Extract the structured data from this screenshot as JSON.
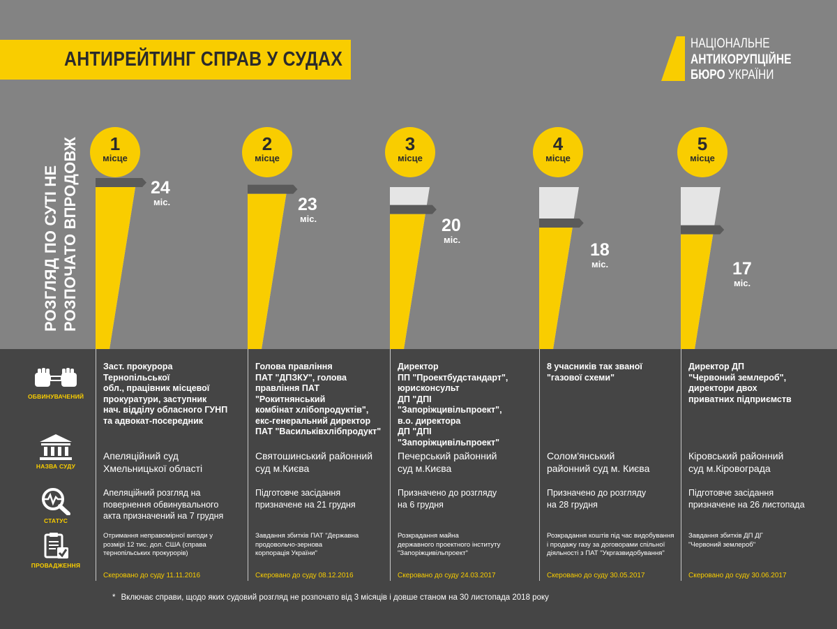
{
  "title": "АНТИРЕЙТИНГ СПРАВ У СУДАХ",
  "logo": {
    "line1": "НАЦІОНАЛЬНЕ",
    "line2": "АНТИКОРУПЦІЙНЕ",
    "line3_bold": "БЮРО",
    "line3_rest": "УКРАЇНИ"
  },
  "vertical_label": {
    "line1": "РОЗГЛЯД ПО СУТІ НЕ",
    "line2": "РОЗПОЧАТО ВПРОДОВЖ"
  },
  "legend": {
    "accused": "ОБВИНУВАЧЕНИЙ",
    "court": "НАЗВА СУДУ",
    "status": "СТАТУС",
    "case": "ПРОВАДЖЕННЯ"
  },
  "place_word": "місце",
  "unit": "міс.",
  "colors": {
    "yellow": "#f9cd00",
    "top_bg": "#838383",
    "bottom_bg": "#454545",
    "bar_max": "#e5e5e5",
    "marker": "#5a5a5a"
  },
  "chart_data": {
    "type": "bar",
    "categories": [
      "1",
      "2",
      "3",
      "4",
      "5"
    ],
    "values": [
      24,
      23,
      20,
      18,
      17
    ],
    "ylim": [
      0,
      24
    ]
  },
  "columns": [
    {
      "place": "1",
      "value_text": "24",
      "accused": "Заст. прокурора Тернопільської\nобл., працівник місцевої\nпрокуратури, заступник\nнач. відділу обласного ГУНП\nта адвокат-посередник",
      "court": "Апеляційний суд\nХмельницької області",
      "status": "Апеляційний розгляд на\nповернення обвинувального\nакта призначений на 7 грудня",
      "case": "Отримання неправомірної вигоди у\nрозмірі 12 тис. дол. США (справа\nтернопільських прокурорів)",
      "sent": "Скеровано до суду  11.11.2016"
    },
    {
      "place": "2",
      "value_text": "23",
      "accused": "Голова правління\nПАТ \"ДПЗКУ\", голова\nправління ПАТ \"Рокитнянський\nкомбінат хлібопродуктів\",\nекс-генеральний директор\nПАТ \"Васильківхлібпродукт\"",
      "court": "Святошинський районний\nсуд м.Києва",
      "status": "Підготовче засідання\nпризначене на 21 грудня",
      "case": "Завдання збитків ПАТ \"Державна\nпродовольчо-зернова\nкорпорація України\"",
      "sent": "Скеровано до суду   08.12.2016"
    },
    {
      "place": "3",
      "value_text": "20",
      "accused": "Директор\nПП \"Проектбудстандарт\",\nюрисконсульт\nДП \"ДПІ \"Запоріжцивільпроект\",\nв.о. директора\nДП \"ДПІ \"Запоріжцивільпроект\"",
      "court": "Печерський районний\nсуд м.Києва",
      "status": "Призначено до розгляду\nна 6 грудня",
      "case": "Розкрадання майна\nдержавного проектного інституту\n\"Запоріжцивільпроект\"",
      "sent": "Скеровано до суду 24.03.2017"
    },
    {
      "place": "4",
      "value_text": "18",
      "accused": " 8 учасників так званої\n\"газової схеми\"",
      "court": "Солом'янський\nрайонний суд м. Києва",
      "status": "Призначено до розгляду\n на 28 грудня",
      "case": "Розкрадання коштів під час видобування\nі продажу газу за договорами спільної\nдіяльності з ПАТ \"Укргазвидобування\"",
      "sent": "Скеровано до суду  30.05.2017"
    },
    {
      "place": "5",
      "value_text": "17",
      "accused": "Директор ДП\n\"Червоний землероб\",\nдиректори двох\nприватних підприємств",
      "court": "Кіровський районний\nсуд м.Кіровограда",
      "status": "Підготовче засідання\nпризначене на 26 листопада",
      "case": "Завдання збитків ДП ДГ\n\"Червоний землероб\"",
      "sent": "Скеровано до суду  30.06.2017"
    }
  ],
  "footnote": "Включає справи, щодо яких судовий розгляд не розпочато від 3 місяців і довше станом на 30 листопада 2018 року",
  "footnote_mark": "*"
}
